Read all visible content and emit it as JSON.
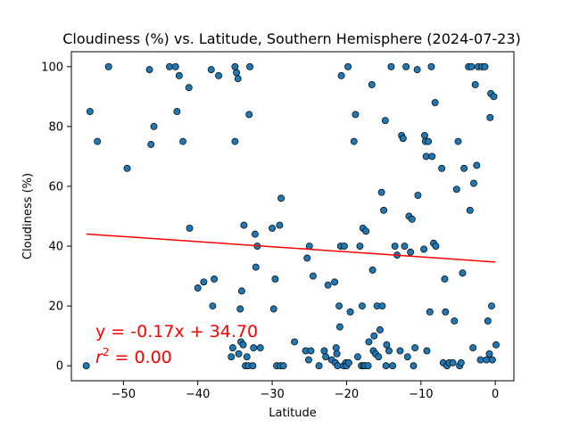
{
  "chart_data": {
    "type": "scatter",
    "title": "Cloudiness (%) vs. Latitude, Southern Hemisphere (2024-07-23)",
    "xlabel": "Latitude",
    "ylabel": "Cloudiness (%)",
    "xlim": [
      -57,
      2.5
    ],
    "ylim": [
      -5,
      105
    ],
    "xticks": [
      -50,
      -40,
      -30,
      -20,
      -10,
      0
    ],
    "xtick_labels": [
      "−50",
      "−40",
      "−30",
      "−20",
      "−10",
      "0"
    ],
    "yticks": [
      0,
      20,
      40,
      60,
      80,
      100
    ],
    "ytick_labels": [
      "0",
      "20",
      "40",
      "60",
      "80",
      "100"
    ],
    "grid": false,
    "point_color": "#1f77b4",
    "point_edge_color": "#000000",
    "regression": {
      "slope": -0.17,
      "intercept": 34.7,
      "x_range": [
        -55,
        0
      ],
      "color": "#ff0000",
      "equation_text": "y = -0.17x + 34.70",
      "r2_prefix": "r",
      "r2_exponent": "2",
      "r2_suffix": " = 0.00"
    },
    "points": [
      [
        -55,
        0
      ],
      [
        -54.5,
        85
      ],
      [
        -53.5,
        75
      ],
      [
        -52,
        100
      ],
      [
        -49.5,
        66
      ],
      [
        -46.5,
        99
      ],
      [
        -46.3,
        74
      ],
      [
        -45.9,
        80
      ],
      [
        -43.8,
        100
      ],
      [
        -43,
        100
      ],
      [
        -42.8,
        85
      ],
      [
        -42.5,
        97
      ],
      [
        -42,
        75
      ],
      [
        -41.2,
        93
      ],
      [
        -41.1,
        46
      ],
      [
        -40,
        26
      ],
      [
        -39.2,
        28
      ],
      [
        -38.2,
        99
      ],
      [
        -38,
        20
      ],
      [
        -37.8,
        29
      ],
      [
        -37.2,
        97
      ],
      [
        -35.5,
        3
      ],
      [
        -35.3,
        6
      ],
      [
        -35,
        100
      ],
      [
        -35,
        75
      ],
      [
        -34.8,
        98
      ],
      [
        -34.6,
        96
      ],
      [
        -34.5,
        4
      ],
      [
        -34.3,
        19
      ],
      [
        -34.2,
        8
      ],
      [
        -34.1,
        25
      ],
      [
        -33.9,
        7
      ],
      [
        -33.8,
        47
      ],
      [
        -33.6,
        0
      ],
      [
        -33.4,
        3
      ],
      [
        -33.2,
        0
      ],
      [
        -33.1,
        84
      ],
      [
        -33,
        100
      ],
      [
        -32.6,
        0
      ],
      [
        -32.5,
        6
      ],
      [
        -32.3,
        44
      ],
      [
        -32.2,
        33
      ],
      [
        -32,
        40
      ],
      [
        -31.6,
        6
      ],
      [
        -30,
        46
      ],
      [
        -29.8,
        19
      ],
      [
        -29.6,
        29
      ],
      [
        -29.4,
        0
      ],
      [
        -29,
        47
      ],
      [
        -28.9,
        0
      ],
      [
        -28.8,
        56
      ],
      [
        -28.5,
        0
      ],
      [
        -27,
        8
      ],
      [
        -25.5,
        5
      ],
      [
        -25.3,
        36
      ],
      [
        -25.1,
        2
      ],
      [
        -25,
        40
      ],
      [
        -24.8,
        5
      ],
      [
        -24.5,
        30
      ],
      [
        -23.7,
        0
      ],
      [
        -23,
        5
      ],
      [
        -22.8,
        3
      ],
      [
        -22.5,
        27
      ],
      [
        -22,
        2
      ],
      [
        -21.6,
        28
      ],
      [
        -21.5,
        1
      ],
      [
        -21.4,
        6
      ],
      [
        -21.3,
        4
      ],
      [
        -21.2,
        0
      ],
      [
        -21,
        20
      ],
      [
        -20.9,
        13
      ],
      [
        -20.8,
        40
      ],
      [
        -20.7,
        97
      ],
      [
        -20.4,
        0
      ],
      [
        -20.3,
        40
      ],
      [
        -20.1,
        1
      ],
      [
        -20,
        0
      ],
      [
        -19.8,
        100
      ],
      [
        -19.7,
        1
      ],
      [
        -19.5,
        18
      ],
      [
        -19,
        75
      ],
      [
        -18.8,
        84
      ],
      [
        -18.5,
        3
      ],
      [
        -18.2,
        40
      ],
      [
        -18,
        0
      ],
      [
        -17.9,
        20
      ],
      [
        -17.8,
        46
      ],
      [
        -17.7,
        0
      ],
      [
        -17.5,
        0
      ],
      [
        -17.4,
        45
      ],
      [
        -17.1,
        0
      ],
      [
        -17,
        8
      ],
      [
        -16.6,
        94
      ],
      [
        -16.5,
        32
      ],
      [
        -16.4,
        5
      ],
      [
        -16.3,
        10
      ],
      [
        -16.1,
        4
      ],
      [
        -15.9,
        20
      ],
      [
        -15.7,
        3
      ],
      [
        -15.5,
        12
      ],
      [
        -15.3,
        58
      ],
      [
        -15.2,
        20
      ],
      [
        -15,
        52
      ],
      [
        -14.8,
        82
      ],
      [
        -14.7,
        0
      ],
      [
        -14.6,
        7
      ],
      [
        -14.3,
        5
      ],
      [
        -14,
        100
      ],
      [
        -13.8,
        0
      ],
      [
        -13.5,
        40
      ],
      [
        -13.2,
        37
      ],
      [
        -12.8,
        5
      ],
      [
        -12.6,
        77
      ],
      [
        -12.4,
        76
      ],
      [
        -12.2,
        40
      ],
      [
        -12,
        100
      ],
      [
        -11.8,
        3
      ],
      [
        -11.6,
        50
      ],
      [
        -11.4,
        38
      ],
      [
        -11.2,
        49
      ],
      [
        -11,
        0
      ],
      [
        -10.8,
        6
      ],
      [
        -10.5,
        99
      ],
      [
        -10.4,
        57
      ],
      [
        -9.6,
        39
      ],
      [
        -9.5,
        77
      ],
      [
        -9.4,
        75
      ],
      [
        -9.3,
        70
      ],
      [
        -9.2,
        5
      ],
      [
        -9,
        75
      ],
      [
        -8.8,
        18
      ],
      [
        -8.6,
        100
      ],
      [
        -8.5,
        70
      ],
      [
        -8.3,
        41
      ],
      [
        -8.1,
        88
      ],
      [
        -8,
        40
      ],
      [
        -7.2,
        66
      ],
      [
        -7,
        1
      ],
      [
        -6.8,
        29
      ],
      [
        -6.7,
        18
      ],
      [
        -6.5,
        0
      ],
      [
        -6.2,
        1
      ],
      [
        -5.7,
        1
      ],
      [
        -5.5,
        15
      ],
      [
        -5.2,
        59
      ],
      [
        -5,
        75
      ],
      [
        -4.8,
        0
      ],
      [
        -4.6,
        1
      ],
      [
        -4.4,
        31
      ],
      [
        -4.2,
        66
      ],
      [
        -3.6,
        100
      ],
      [
        -3.4,
        52
      ],
      [
        -3.2,
        100
      ],
      [
        -3,
        6
      ],
      [
        -2.9,
        61
      ],
      [
        -2.7,
        94
      ],
      [
        -2.5,
        67
      ],
      [
        -2.3,
        100
      ],
      [
        -2,
        2
      ],
      [
        -1.8,
        100
      ],
      [
        -1.4,
        100
      ],
      [
        -1.2,
        2
      ],
      [
        -1,
        15
      ],
      [
        -0.8,
        4
      ],
      [
        -0.7,
        83
      ],
      [
        -0.6,
        91
      ],
      [
        -0.5,
        20
      ],
      [
        -0.4,
        2
      ],
      [
        -0.2,
        90
      ],
      [
        0.1,
        7
      ]
    ]
  }
}
